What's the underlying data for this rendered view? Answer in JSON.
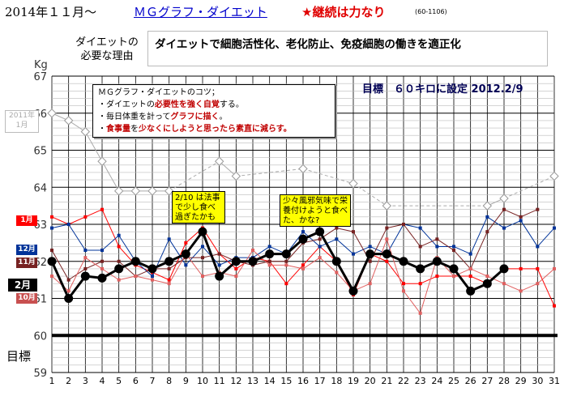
{
  "header": {
    "date_title": "2014年１１月〜",
    "link_title": "ＭＧグラフ・ダイエット",
    "motto": "★継続は力なり",
    "code": "(60-1106)"
  },
  "reason": {
    "label_line1": "ダイエットの",
    "label_line2": "必要な理由",
    "text": "ダイエットで細胞活性化、老化防止、免疫細胞の働きを適正化"
  },
  "tips": {
    "title": "ＭＧグラフ・ダイエットのコツ；",
    "line1_a": "・ダイエットの",
    "line1_b": "必要性を強く自覚",
    "line1_c": "する。",
    "line2_a": "・毎日体重を計って",
    "line2_b": "グラフに描く",
    "line2_c": "。",
    "line3_a": "・",
    "line3_b": "食事量",
    "line3_c": "を",
    "line3_d": "少なくにしようと思ったら素直に減らす。"
  },
  "target_note": "目標　６０キロに設定 2012.2/9",
  "goal_label": "目標",
  "annotations": {
    "note1": "2/10 は法事で少し食べ過ぎたかも",
    "note2": "少々風邪気味で栄養付けようと食べた、かな?"
  },
  "chart_data": {
    "type": "line",
    "ylabel": "Kg",
    "ylim": [
      59,
      67
    ],
    "yticks": [
      59,
      60,
      61,
      62,
      63,
      64,
      65,
      66,
      67
    ],
    "x": [
      1,
      2,
      3,
      4,
      5,
      6,
      7,
      8,
      9,
      10,
      11,
      12,
      13,
      14,
      15,
      16,
      17,
      18,
      19,
      20,
      21,
      22,
      23,
      24,
      25,
      26,
      27,
      28,
      29,
      30,
      31
    ],
    "goal": 60,
    "series": [
      {
        "name": "2011年 1月",
        "color": "#aaaaaa",
        "values": [
          66.0,
          65.8,
          65.5,
          64.7,
          63.9,
          63.9,
          63.9,
          63.9,
          null,
          null,
          64.7,
          64.3,
          null,
          null,
          null,
          64.5,
          null,
          null,
          64.1,
          null,
          63.5,
          null,
          null,
          null,
          null,
          null,
          63.5,
          63.7,
          null,
          null,
          64.3
        ]
      },
      {
        "name": "1月",
        "color": "#ff0000",
        "values": [
          63.2,
          63.0,
          63.2,
          63.4,
          62.4,
          61.9,
          61.7,
          61.5,
          62.5,
          62.9,
          62.2,
          61.8,
          62.1,
          62.0,
          61.4,
          61.9,
          62.4,
          62.0,
          61.1,
          62.2,
          62.0,
          61.4,
          61.4,
          61.6,
          61.6,
          61.6,
          61.4,
          61.8,
          61.8,
          61.8,
          60.8
        ]
      },
      {
        "name": "12月",
        "color": "#003399",
        "values": [
          62.9,
          63.0,
          62.3,
          62.3,
          62.7,
          62.0,
          61.6,
          62.6,
          61.9,
          62.4,
          61.9,
          62.1,
          62.1,
          62.4,
          62.2,
          62.8,
          62.4,
          62.6,
          62.2,
          62.4,
          62.2,
          63.0,
          62.9,
          62.4,
          62.4,
          62.2,
          63.2,
          62.9,
          63.1,
          62.4,
          62.9
        ]
      },
      {
        "name": "11月",
        "color": "#772222",
        "values": [
          62.3,
          61.5,
          61.8,
          62.0,
          62.0,
          61.6,
          61.8,
          61.8,
          62.1,
          62.1,
          62.2,
          62.0,
          61.9,
          62.0,
          62.0,
          62.5,
          62.6,
          62.9,
          62.8,
          62.0,
          62.9,
          63.0,
          62.4,
          62.6,
          62.3,
          61.8,
          62.8,
          63.4,
          63.2,
          63.4,
          null
        ]
      },
      {
        "name": "10月",
        "color": "#e06060",
        "values": [
          61.6,
          61.2,
          62.1,
          61.8,
          61.5,
          61.6,
          61.5,
          61.4,
          62.2,
          61.6,
          61.7,
          61.6,
          62.3,
          61.9,
          61.9,
          61.8,
          62.1,
          61.7,
          61.2,
          61.4,
          62.6,
          61.2,
          60.6,
          62.1,
          61.6,
          61.8,
          61.6,
          61.4,
          61.2,
          61.4,
          61.8
        ]
      },
      {
        "name": "2月",
        "color": "#000000",
        "values": [
          62.0,
          61.0,
          61.6,
          61.55,
          61.8,
          62.0,
          61.8,
          62.0,
          62.2,
          62.8,
          61.6,
          62.0,
          62.0,
          62.2,
          62.2,
          62.6,
          62.8,
          62.0,
          61.2,
          62.2,
          62.2,
          62.0,
          61.8,
          62.0,
          61.8,
          61.2,
          61.4,
          61.8,
          null,
          null,
          null
        ]
      }
    ]
  }
}
